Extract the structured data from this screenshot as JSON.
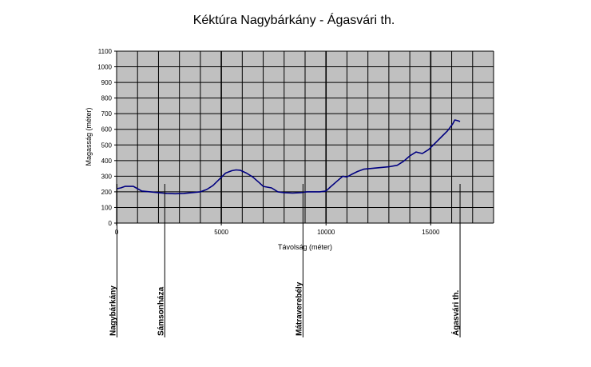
{
  "chart_data": {
    "type": "line",
    "title": "Kéktúra Nagybárkány - Ágasvári th.",
    "xlabel": "Távolság (méter)",
    "ylabel": "Magasság (méter)",
    "xlim": [
      0,
      18000
    ],
    "ylim": [
      0,
      1100
    ],
    "x_ticks": [
      0,
      5000,
      10000,
      15000
    ],
    "x_tick_labels": [
      "0",
      "5000",
      "10000",
      "15000"
    ],
    "y_ticks": [
      0,
      100,
      200,
      300,
      400,
      500,
      600,
      700,
      800,
      900,
      1000,
      1100
    ],
    "y_tick_labels": [
      "0",
      "100",
      "200",
      "300",
      "400",
      "500",
      "600",
      "700",
      "800",
      "900",
      "1000",
      "1100"
    ],
    "grid": true,
    "plot_background": "#c0c0c0",
    "line_color": "#000080",
    "series": [
      {
        "values": [
          [
            0,
            220
          ],
          [
            200,
            225
          ],
          [
            400,
            235
          ],
          [
            800,
            235
          ],
          [
            1000,
            220
          ],
          [
            1200,
            205
          ],
          [
            1600,
            200
          ],
          [
            2000,
            195
          ],
          [
            2400,
            190
          ],
          [
            2800,
            188
          ],
          [
            3200,
            190
          ],
          [
            3600,
            195
          ],
          [
            4000,
            200
          ],
          [
            4300,
            215
          ],
          [
            4600,
            240
          ],
          [
            4900,
            280
          ],
          [
            5200,
            320
          ],
          [
            5500,
            335
          ],
          [
            5700,
            340
          ],
          [
            5900,
            338
          ],
          [
            6200,
            320
          ],
          [
            6500,
            295
          ],
          [
            6800,
            260
          ],
          [
            7000,
            235
          ],
          [
            7400,
            225
          ],
          [
            7700,
            200
          ],
          [
            8000,
            195
          ],
          [
            8400,
            192
          ],
          [
            8800,
            195
          ],
          [
            9100,
            200
          ],
          [
            9400,
            200
          ],
          [
            9700,
            200
          ],
          [
            10000,
            205
          ],
          [
            10200,
            230
          ],
          [
            10500,
            265
          ],
          [
            10800,
            300
          ],
          [
            11000,
            295
          ],
          [
            11200,
            310
          ],
          [
            11500,
            330
          ],
          [
            11800,
            345
          ],
          [
            12200,
            350
          ],
          [
            12600,
            355
          ],
          [
            13000,
            360
          ],
          [
            13400,
            370
          ],
          [
            13700,
            395
          ],
          [
            14000,
            430
          ],
          [
            14300,
            455
          ],
          [
            14600,
            445
          ],
          [
            14900,
            470
          ],
          [
            15200,
            510
          ],
          [
            15500,
            550
          ],
          [
            15800,
            590
          ],
          [
            16050,
            635
          ],
          [
            16150,
            660
          ],
          [
            16300,
            655
          ],
          [
            16400,
            650
          ]
        ]
      }
    ],
    "waypoints": [
      {
        "label": "Nagybárkány",
        "x": 0
      },
      {
        "label": "Sámsonháza",
        "x": 2300
      },
      {
        "label": "Mátraverebély",
        "x": 8900
      },
      {
        "label": "Ágasvári th.",
        "x": 16400
      }
    ]
  }
}
